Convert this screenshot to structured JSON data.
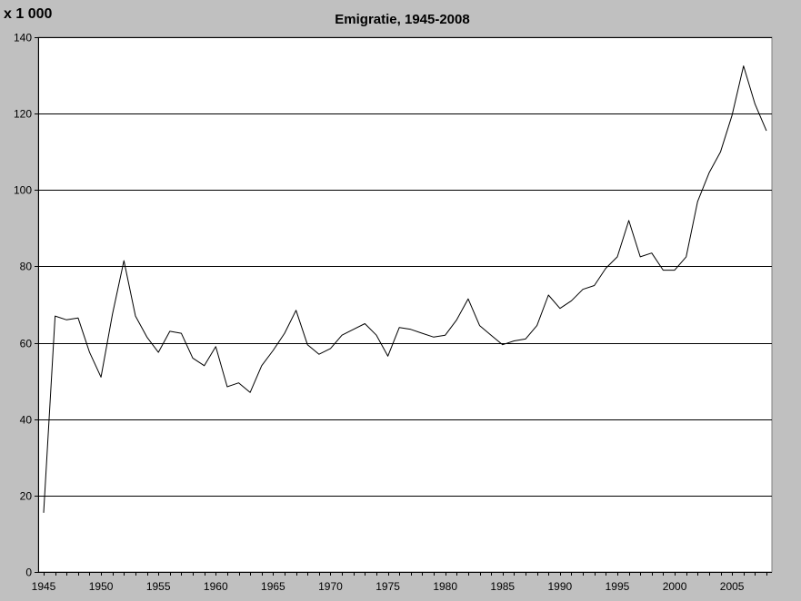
{
  "chart_data": {
    "type": "line",
    "title": "Emigratie, 1945-2008",
    "unit_label": "x 1 000",
    "xlabel": "",
    "ylabel": "",
    "xlim": [
      1945,
      2008
    ],
    "ylim": [
      0,
      140
    ],
    "y_ticks": [
      0,
      20,
      40,
      60,
      80,
      100,
      120,
      140
    ],
    "x_tick_labels": [
      1945,
      1950,
      1955,
      1960,
      1965,
      1970,
      1975,
      1980,
      1985,
      1990,
      1995,
      2000,
      2005
    ],
    "grid": "horizontal",
    "legend": "none",
    "colors": {
      "background": "#c0c0c0",
      "plot_area": "#ffffff",
      "line": "#000000",
      "gridline": "#000000"
    },
    "x": [
      1945,
      1946,
      1947,
      1948,
      1949,
      1950,
      1951,
      1952,
      1953,
      1954,
      1955,
      1956,
      1957,
      1958,
      1959,
      1960,
      1961,
      1962,
      1963,
      1964,
      1965,
      1966,
      1967,
      1968,
      1969,
      1970,
      1971,
      1972,
      1973,
      1974,
      1975,
      1976,
      1977,
      1978,
      1979,
      1980,
      1981,
      1982,
      1983,
      1984,
      1985,
      1986,
      1987,
      1988,
      1989,
      1990,
      1991,
      1992,
      1993,
      1994,
      1995,
      1996,
      1997,
      1998,
      1999,
      2000,
      2001,
      2002,
      2003,
      2004,
      2005,
      2006,
      2007,
      2008
    ],
    "series": [
      {
        "values": [
          15.5,
          67,
          66,
          66.5,
          57.5,
          51,
          67.5,
          81.5,
          67,
          61.5,
          57.5,
          63,
          62.5,
          56,
          54,
          59,
          48.5,
          49.5,
          47,
          54,
          58,
          62.5,
          68.5,
          59.5,
          57,
          58.5,
          62,
          63.5,
          65,
          62,
          56.5,
          64,
          63.5,
          62.5,
          61.5,
          62,
          66,
          71.5,
          64.5,
          62,
          59.5,
          60.5,
          61,
          64.5,
          72.5,
          69,
          71,
          74,
          75,
          79.5,
          82.5,
          92,
          82.5,
          83.5,
          79,
          79,
          82.5,
          97,
          104.5,
          110,
          119.5,
          132.5,
          122.5,
          115.5
        ]
      }
    ]
  }
}
